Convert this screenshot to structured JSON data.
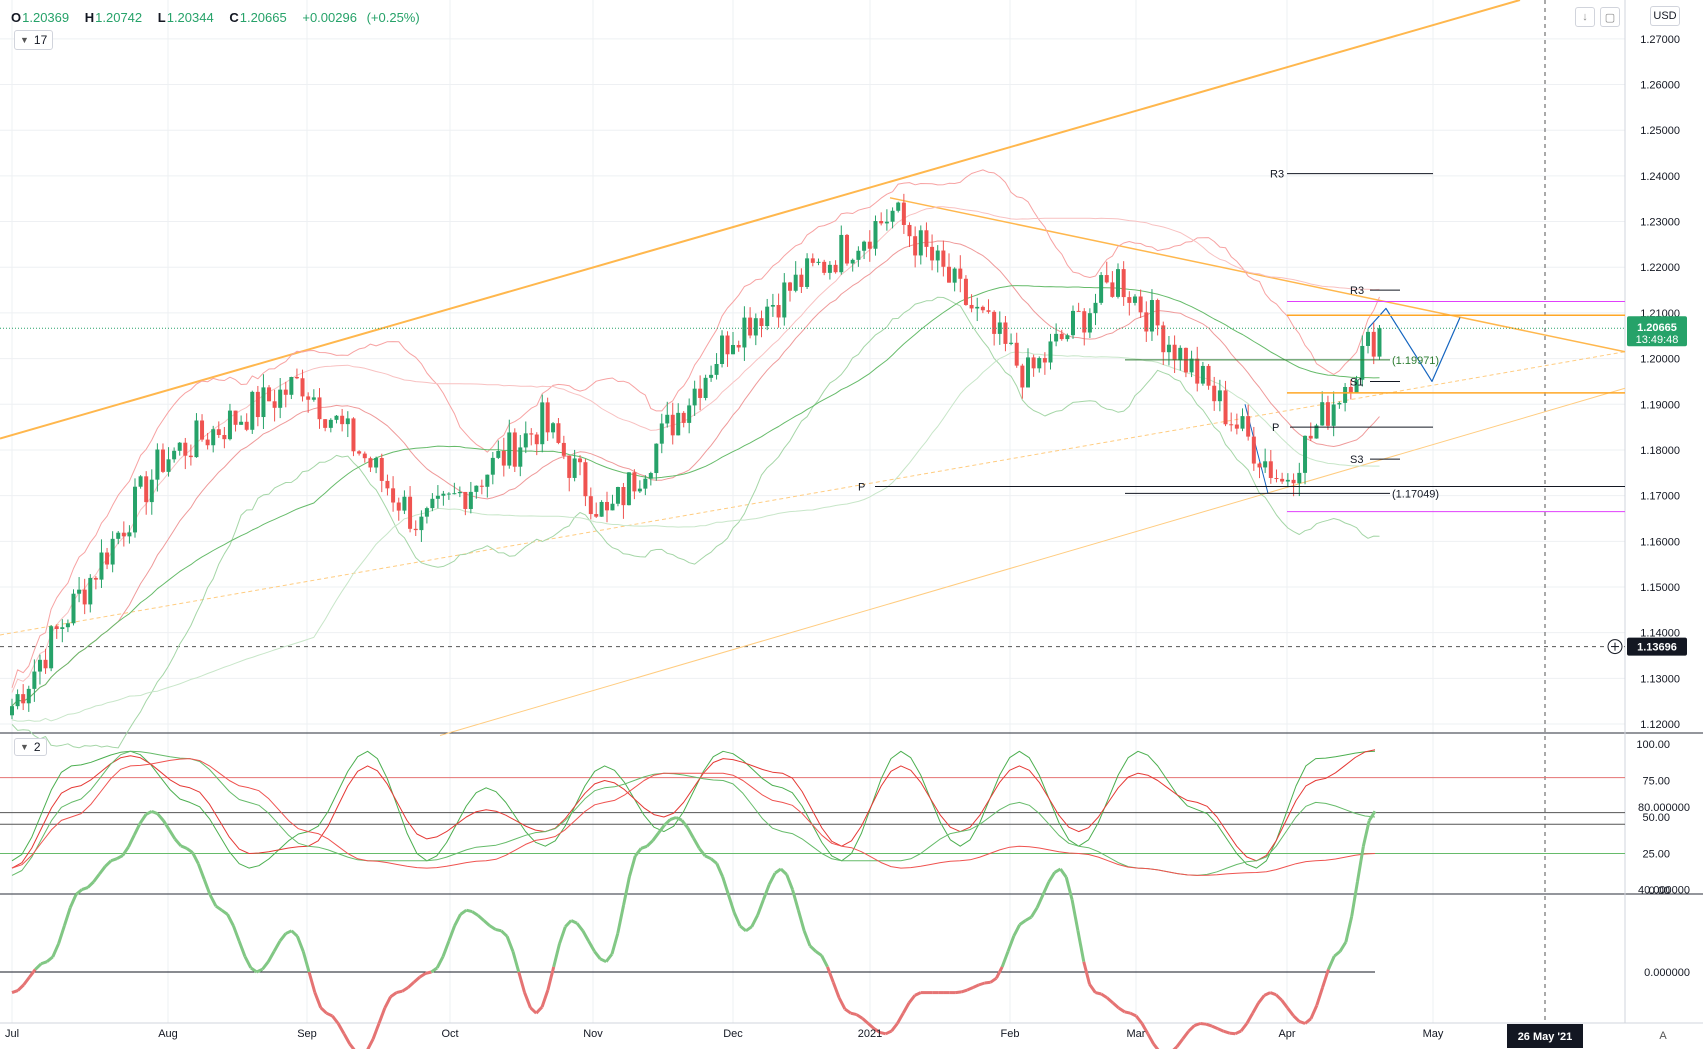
{
  "symbol_legend": {
    "open_key": "O",
    "open": "1.20369",
    "high_key": "H",
    "high": "1.20742",
    "low_key": "L",
    "low": "1.20344",
    "close_key": "C",
    "close": "1.20665",
    "change": "+0.00296",
    "change_pct": "(+0.25%)"
  },
  "indicator_badges": {
    "main": "17",
    "oscillator": "2"
  },
  "currency": "USD",
  "auto_scale_label": "A",
  "colors": {
    "up": "#26a269",
    "down": "#ef5350",
    "trend": "#ffb74d",
    "bollinger_upper": "#f7a3a3",
    "bollinger_lower": "#a5d6a7",
    "ma": "#66bb6a",
    "grid": "#eef0f3",
    "magenta": "#e040fb",
    "projection": "#1565c0"
  },
  "chart_data": [
    {
      "type": "candlestick",
      "title": "",
      "timeframe": "daily",
      "x_axis": {
        "ticks": [
          "Jul",
          "Aug",
          "Sep",
          "Oct",
          "Nov",
          "Dec",
          "2021",
          "Feb",
          "Mar",
          "Apr",
          "May"
        ],
        "highlighted_tick": "26 May '21"
      },
      "y_axis": {
        "range": [
          1.117,
          1.275
        ],
        "ticks": [
          "1.27000",
          "1.26000",
          "1.25000",
          "1.24000",
          "1.23000",
          "1.22000",
          "1.21000",
          "1.20000",
          "1.19000",
          "1.18000",
          "1.17000",
          "1.16000",
          "1.15000",
          "1.14000",
          "1.13000",
          "1.12000"
        ],
        "last_price": "1.20665",
        "countdown": "13:49:48",
        "crosshair_price": "1.13696"
      },
      "key_points": [
        {
          "date": "2020-07-01",
          "close": 1.124
        },
        {
          "date": "2020-07-31",
          "close": 1.178
        },
        {
          "date": "2020-08-31",
          "close": 1.195
        },
        {
          "date": "2020-09-25",
          "close": 1.163
        },
        {
          "date": "2020-10-21",
          "close": 1.186
        },
        {
          "date": "2020-11-04",
          "close": 1.165
        },
        {
          "date": "2020-12-01",
          "close": 1.206
        },
        {
          "date": "2021-01-06",
          "close": 1.232
        },
        {
          "date": "2021-02-05",
          "close": 1.196
        },
        {
          "date": "2021-02-25",
          "close": 1.218
        },
        {
          "date": "2021-03-31",
          "close": 1.173
        },
        {
          "date": "2021-04-20",
          "close": 1.20665
        }
      ],
      "annotations": [
        {
          "label": "R3",
          "price": 1.2405
        },
        {
          "label": "R3",
          "price": 1.215
        },
        {
          "label": "P",
          "price": 1.185
        },
        {
          "label": "S3",
          "price": 1.178
        },
        {
          "label": "P",
          "price": 1.172
        },
        {
          "label": "S1",
          "price": 1.195
        },
        {
          "label": "(1.19971)",
          "price": 1.19971
        },
        {
          "label": "(1.17049)",
          "price": 1.17049
        }
      ]
    },
    {
      "type": "line",
      "title": "",
      "y_axis": {
        "range": [
          0,
          100
        ],
        "ticks": [
          "100.00",
          "75.00",
          "50.00",
          "25.00",
          "0.00"
        ]
      },
      "levels": [
        77,
        53,
        45,
        25
      ],
      "series": [
        {
          "values": [
            20,
            85,
            95,
            60,
            15,
            40,
            95,
            20,
            70,
            30,
            85,
            40,
            95,
            70,
            20,
            95,
            30,
            95,
            30,
            95,
            55,
            15,
            90,
            95
          ]
        },
        {
          "values": [
            15,
            70,
            92,
            70,
            25,
            30,
            85,
            35,
            55,
            40,
            75,
            50,
            90,
            80,
            30,
            85,
            40,
            85,
            40,
            80,
            60,
            20,
            75,
            96
          ]
        },
        {
          "values": [
            10,
            60,
            95,
            90,
            60,
            30,
            20,
            20,
            30,
            40,
            70,
            80,
            75,
            40,
            20,
            20,
            40,
            60,
            30,
            15,
            10,
            20,
            60,
            50
          ]
        },
        {
          "values": [
            15,
            50,
            85,
            90,
            70,
            40,
            20,
            15,
            20,
            35,
            60,
            80,
            80,
            60,
            30,
            15,
            20,
            30,
            25,
            15,
            10,
            12,
            20,
            25
          ]
        }
      ]
    },
    {
      "type": "line",
      "title": "",
      "y_axis": {
        "range": [
          -55,
          92
        ],
        "ticks": [
          "80.000000",
          "40.000000",
          "0.000000",
          "-40.000000"
        ]
      },
      "zero_line": 0,
      "series": [
        {
          "values": [
            -10,
            5,
            40,
            55,
            78,
            60,
            30,
            0,
            20,
            -20,
            -40,
            -10,
            0,
            30,
            20,
            -20,
            25,
            5,
            60,
            75,
            55,
            20,
            50,
            10,
            -20,
            -30,
            -10,
            -10,
            -5,
            25,
            50,
            -10,
            -20,
            -40,
            -25,
            -30,
            -10,
            -25,
            10,
            78
          ]
        }
      ]
    }
  ]
}
